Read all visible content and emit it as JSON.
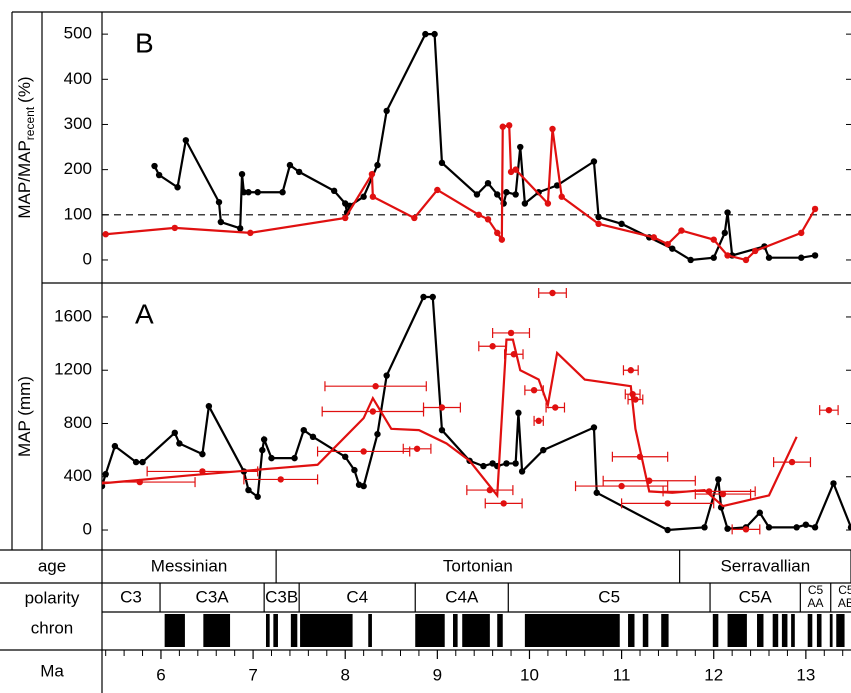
{
  "chart_data": [
    {
      "type": "line",
      "panel_label": "B",
      "ylabel": {
        "main": "MAP/MAP",
        "sub": "recent",
        "unit": "(%)"
      },
      "xlim": [
        5.36,
        13.49
      ],
      "ylim": [
        -51,
        549
      ],
      "yticks": [
        0,
        100,
        200,
        300,
        400,
        500
      ],
      "hline": 100,
      "series": [
        {
          "color": "#000000",
          "markers": true,
          "x": [
            5.93,
            5.98,
            6.18,
            6.27,
            6.63,
            6.65,
            6.86,
            6.88,
            6.9,
            6.95,
            7.05,
            7.32,
            7.4,
            7.5,
            7.88,
            8.0,
            8.02,
            8.05,
            8.2,
            8.35,
            8.45,
            8.87,
            8.97,
            9.05,
            9.43,
            9.55,
            9.65,
            9.72,
            9.75,
            9.85,
            9.9,
            9.95,
            10.1,
            10.3,
            10.7,
            10.75,
            11.0,
            11.3,
            11.55,
            11.75,
            12.0,
            12.12,
            12.15,
            12.2,
            12.55,
            12.6,
            12.95,
            13.1
          ],
          "values": [
            208,
            188,
            161,
            265,
            128,
            84,
            70,
            190,
            150,
            150,
            150,
            150,
            210,
            195,
            153,
            125,
            105,
            120,
            140,
            210,
            330,
            500,
            500,
            215,
            145,
            170,
            145,
            125,
            150,
            145,
            250,
            125,
            150,
            165,
            218,
            95,
            80,
            50,
            25,
            0,
            5,
            60,
            105,
            10,
            30,
            5,
            5,
            10
          ]
        },
        {
          "color": "#e01010",
          "markers": true,
          "x": [
            5.4,
            6.15,
            6.97,
            8.0,
            8.29,
            8.3,
            8.75,
            9.0,
            9.45,
            9.55,
            9.65,
            9.7,
            9.71,
            9.78,
            9.8,
            9.85,
            10.2,
            10.25,
            10.35,
            10.75,
            11.35,
            11.5,
            11.65,
            12.0,
            12.15,
            12.35,
            12.45,
            12.95,
            13.1
          ],
          "values": [
            57,
            71,
            60,
            93,
            190,
            140,
            93,
            155,
            100,
            90,
            60,
            45,
            295,
            298,
            195,
            200,
            125,
            290,
            140,
            80,
            50,
            35,
            65,
            45,
            10,
            0,
            20,
            60,
            113
          ]
        }
      ]
    },
    {
      "type": "line",
      "panel_label": "A",
      "ylabel": {
        "main": "MAP (mm)"
      },
      "xlim": [
        5.36,
        13.49
      ],
      "ylim": [
        -150,
        1855
      ],
      "yticks": [
        0,
        400,
        800,
        1200,
        1600
      ],
      "series": [
        {
          "color": "#000000",
          "markers": true,
          "x": [
            5.36,
            5.4,
            5.5,
            5.73,
            5.8,
            6.15,
            6.2,
            6.45,
            6.52,
            6.9,
            6.95,
            7.05,
            7.1,
            7.12,
            7.2,
            7.45,
            7.55,
            7.65,
            8.0,
            8.1,
            8.15,
            8.2,
            8.35,
            8.45,
            8.85,
            8.95,
            9.05,
            9.35,
            9.5,
            9.6,
            9.65,
            9.75,
            9.85,
            9.88,
            9.92,
            10.15,
            10.7,
            10.73,
            11.5,
            11.9,
            12.05,
            12.08,
            12.15,
            12.35,
            12.5,
            12.6,
            12.9,
            13.0,
            13.1,
            13.3,
            13.49
          ],
          "values": [
            330,
            420,
            630,
            510,
            510,
            730,
            650,
            570,
            930,
            440,
            300,
            250,
            600,
            680,
            540,
            540,
            750,
            700,
            550,
            450,
            340,
            330,
            720,
            1160,
            1750,
            1750,
            750,
            520,
            480,
            500,
            480,
            500,
            500,
            880,
            440,
            600,
            770,
            280,
            0,
            20,
            380,
            170,
            10,
            20,
            130,
            20,
            20,
            40,
            20,
            350,
            20
          ]
        },
        {
          "color": "#e01010",
          "markers": false,
          "x": [
            5.36,
            6.3,
            7.35,
            7.7,
            8.2,
            8.3,
            8.5,
            8.8,
            9.1,
            9.35,
            9.65,
            9.75,
            9.82,
            9.9,
            10.1,
            10.2,
            10.3,
            10.6,
            11.1,
            11.15,
            11.3,
            11.55,
            11.9,
            12.1,
            12.6,
            12.9
          ],
          "values": [
            350,
            410,
            470,
            490,
            840,
            990,
            760,
            750,
            650,
            520,
            260,
            1430,
            1430,
            1200,
            1130,
            940,
            1330,
            1130,
            1080,
            760,
            290,
            280,
            300,
            180,
            260,
            700
          ]
        },
        {
          "color": "#e01010",
          "markers": true,
          "line": false,
          "x": [
            5.77,
            6.45,
            7.3,
            8.33,
            8.3,
            8.2,
            8.78,
            9.05,
            9.57,
            9.72,
            9.6,
            9.8,
            9.83,
            10.05,
            10.1,
            10.25,
            10.28,
            11.1,
            11.12,
            11.15,
            11.2,
            11.3,
            11.0,
            11.5,
            11.95,
            12.1,
            12.35,
            12.85,
            13.25
          ],
          "values": [
            360,
            440,
            380,
            1080,
            890,
            590,
            610,
            920,
            300,
            200,
            1380,
            1480,
            1320,
            1050,
            820,
            1780,
            920,
            1200,
            1020,
            980,
            550,
            370,
            330,
            200,
            290,
            270,
            5,
            510,
            900
          ],
          "xerr": [
            0.6,
            0.6,
            0.4,
            0.55,
            0.55,
            0.5,
            0.15,
            0.2,
            0.25,
            0.2,
            0.15,
            0.2,
            0.1,
            0.1,
            0.05,
            0.15,
            0.1,
            0.08,
            0.08,
            0.08,
            0.3,
            0.5,
            0.5,
            0.5,
            0.5,
            0.3,
            0.15,
            0.2,
            0.1
          ]
        }
      ]
    },
    {
      "type": "timescale",
      "xlim": [
        5.36,
        13.49
      ],
      "xlabel": "Ma",
      "xticks": [
        6,
        7,
        8,
        9,
        10,
        11,
        12,
        13
      ],
      "xticks_minor": [
        5.4,
        5.6,
        5.8,
        6.2,
        6.4,
        6.6,
        6.8,
        7.2,
        7.4,
        7.6,
        7.8,
        8.2,
        8.4,
        8.6,
        8.8,
        9.2,
        9.4,
        9.6,
        9.8,
        10.2,
        10.4,
        10.6,
        10.8,
        11.2,
        11.4,
        11.6,
        11.8,
        12.2,
        12.4,
        12.6,
        12.8,
        13.2,
        13.4
      ],
      "age_label": "age",
      "stages": [
        {
          "name": "Messinian",
          "start": 5.36,
          "end": 7.25
        },
        {
          "name": "Tortonian",
          "start": 7.25,
          "end": 11.63
        },
        {
          "name": "Serravallian",
          "start": 11.63,
          "end": 13.49
        }
      ],
      "polarity_label": "polarity",
      "chron_label": "chron",
      "chrons": [
        {
          "name": [
            "C3"
          ],
          "start": 5.36,
          "end": 5.99
        },
        {
          "name": [
            "C3A"
          ],
          "start": 5.99,
          "end": 7.12
        },
        {
          "name": [
            "C3B"
          ],
          "start": 7.12,
          "end": 7.5
        },
        {
          "name": [
            "C4"
          ],
          "start": 7.5,
          "end": 8.76
        },
        {
          "name": [
            "C4A"
          ],
          "start": 8.76,
          "end": 9.77
        },
        {
          "name": [
            "C5"
          ],
          "start": 9.77,
          "end": 11.96
        },
        {
          "name": [
            "C5A"
          ],
          "start": 11.96,
          "end": 12.94
        },
        {
          "name": [
            "C5",
            "AA"
          ],
          "start": 12.94,
          "end": 13.27
        },
        {
          "name": [
            "C5",
            "AB"
          ],
          "start": 13.27,
          "end": 13.6
        }
      ],
      "normal_intervals": [
        [
          6.04,
          6.26
        ],
        [
          6.46,
          6.75
        ],
        [
          7.14,
          7.18
        ],
        [
          7.22,
          7.27
        ],
        [
          7.41,
          7.48
        ],
        [
          7.51,
          8.08
        ],
        [
          8.25,
          8.29
        ],
        [
          8.76,
          9.08
        ],
        [
          9.17,
          9.22
        ],
        [
          9.27,
          9.57
        ],
        [
          9.65,
          9.71
        ],
        [
          9.95,
          10.98
        ],
        [
          11.07,
          11.14
        ],
        [
          11.23,
          11.29
        ],
        [
          11.43,
          11.51
        ],
        [
          11.99,
          12.05
        ],
        [
          12.15,
          12.36
        ],
        [
          12.47,
          12.54
        ],
        [
          12.64,
          12.7
        ],
        [
          12.74,
          12.8
        ],
        [
          12.84,
          12.88
        ],
        [
          13.02,
          13.07
        ],
        [
          13.12,
          13.17
        ],
        [
          13.26,
          13.29
        ],
        [
          13.33,
          13.42
        ]
      ]
    }
  ]
}
